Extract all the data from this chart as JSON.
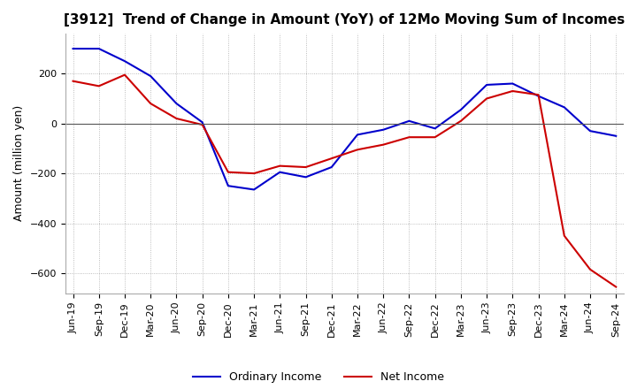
{
  "title": "[3912]  Trend of Change in Amount (YoY) of 12Mo Moving Sum of Incomes",
  "ylabel": "Amount (million yen)",
  "xlabels": [
    "Jun-19",
    "Sep-19",
    "Dec-19",
    "Mar-20",
    "Jun-20",
    "Sep-20",
    "Dec-20",
    "Mar-21",
    "Jun-21",
    "Sep-21",
    "Dec-21",
    "Mar-22",
    "Jun-22",
    "Sep-22",
    "Dec-22",
    "Mar-23",
    "Jun-23",
    "Sep-23",
    "Dec-23",
    "Mar-24",
    "Jun-24",
    "Sep-24"
  ],
  "ordinary_income": [
    300,
    300,
    250,
    190,
    80,
    5,
    -250,
    -265,
    -195,
    -215,
    -175,
    -45,
    -25,
    10,
    -20,
    55,
    155,
    160,
    110,
    65,
    -30,
    -50
  ],
  "net_income": [
    170,
    150,
    195,
    80,
    20,
    -5,
    -195,
    -200,
    -170,
    -175,
    -140,
    -105,
    -85,
    -55,
    -55,
    10,
    100,
    130,
    115,
    -450,
    -585,
    -655
  ],
  "ylim": [
    -680,
    360
  ],
  "yticks": [
    200,
    0,
    -200,
    -400,
    -600
  ],
  "line_color_ordinary": "#0000cc",
  "line_color_net": "#cc0000",
  "legend_labels": [
    "Ordinary Income",
    "Net Income"
  ],
  "bg_color": "#ffffff",
  "grid_color": "#aaaaaa",
  "title_fontsize": 11,
  "axis_fontsize": 9,
  "tick_fontsize": 8
}
